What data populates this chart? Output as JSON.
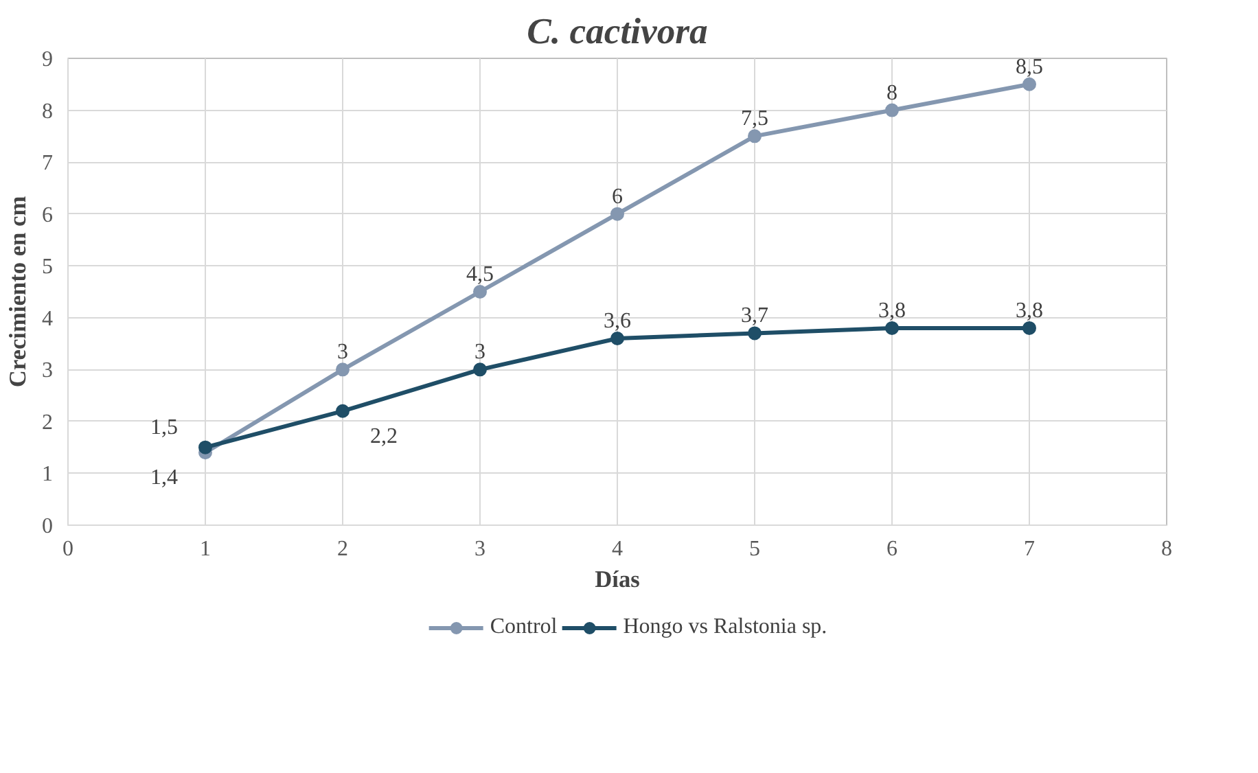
{
  "chart_data": {
    "type": "line",
    "title": "C. cactivora",
    "xlabel": "Días",
    "ylabel": "Crecimiento en cm",
    "x": [
      1,
      2,
      3,
      4,
      5,
      6,
      7
    ],
    "series": [
      {
        "name": "Control",
        "color": "#8497b0",
        "values": [
          1.4,
          3,
          4.5,
          6,
          7.5,
          8,
          8.5
        ],
        "value_labels": [
          "1,4",
          "3",
          "4,5",
          "6",
          "7,5",
          "8",
          "8,5"
        ]
      },
      {
        "name": "Hongo vs Ralstonia sp.",
        "color": "#1f4e67",
        "values": [
          1.5,
          2.2,
          3,
          3.6,
          3.7,
          3.8,
          3.8
        ],
        "value_labels": [
          "1,5",
          "2,2",
          "3",
          "3,6",
          "3,7",
          "3,8",
          "3,8"
        ]
      }
    ],
    "xlim": [
      0,
      8
    ],
    "xticks": [
      0,
      1,
      2,
      3,
      4,
      5,
      6,
      7,
      8
    ],
    "ylim": [
      0,
      9
    ],
    "yticks": [
      0,
      1,
      2,
      3,
      4,
      5,
      6,
      7,
      8,
      9
    ],
    "grid": true,
    "legend": "bottom",
    "marker": "circle",
    "line_style": "solid"
  }
}
